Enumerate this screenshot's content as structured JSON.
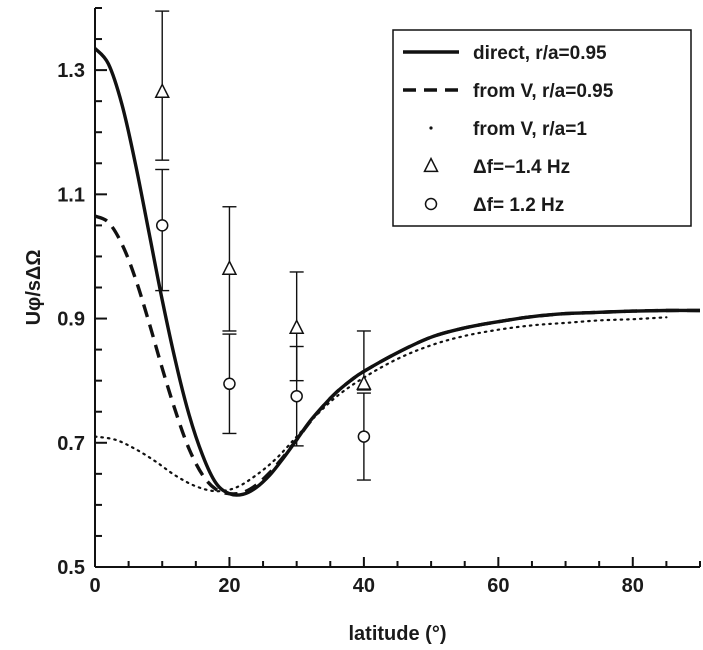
{
  "chart_data": {
    "type": "line",
    "title": "",
    "xlabel": "latitude (°)",
    "ylabel": "Uφ/sΔΩ",
    "xlim": [
      0,
      90
    ],
    "ylim": [
      0.5,
      1.4
    ],
    "x_ticks": [
      0,
      20,
      40,
      60,
      80
    ],
    "x_tick_labels": [
      "0",
      "20",
      "40",
      "60",
      "80"
    ],
    "y_ticks": [
      0.5,
      0.7,
      0.9,
      1.1,
      1.3
    ],
    "y_tick_labels": [
      "0.5",
      "0.7",
      "0.9",
      "1.1",
      "1.3"
    ],
    "grid": false,
    "legend_position": "top-right",
    "series": [
      {
        "name": "direct, r/a=0.95",
        "style": "solid",
        "color": "#111111",
        "x": [
          0,
          2,
          4,
          6,
          8,
          10,
          12,
          14,
          16,
          18,
          20,
          22,
          24,
          26,
          28,
          30,
          32,
          34,
          36,
          38,
          40,
          45,
          50,
          55,
          60,
          65,
          70,
          75,
          80,
          85,
          90
        ],
        "y": [
          1.335,
          1.31,
          1.245,
          1.15,
          1.04,
          0.93,
          0.83,
          0.745,
          0.68,
          0.635,
          0.618,
          0.617,
          0.628,
          0.648,
          0.675,
          0.705,
          0.735,
          0.76,
          0.782,
          0.8,
          0.815,
          0.845,
          0.87,
          0.885,
          0.895,
          0.903,
          0.908,
          0.91,
          0.912,
          0.913,
          0.913
        ]
      },
      {
        "name": "from V, r/a=0.95",
        "style": "dashed",
        "color": "#111111",
        "x": [
          0,
          2,
          4,
          6,
          8,
          10,
          12,
          14,
          16,
          18,
          20,
          22,
          24,
          26,
          28,
          30,
          32,
          34,
          36,
          38,
          40,
          45,
          50,
          55,
          60,
          65,
          70,
          75,
          80,
          85,
          90
        ],
        "y": [
          1.065,
          1.055,
          1.02,
          0.965,
          0.895,
          0.82,
          0.75,
          0.69,
          0.648,
          0.625,
          0.618,
          0.62,
          0.632,
          0.652,
          0.677,
          0.705,
          0.734,
          0.76,
          0.782,
          0.8,
          0.815,
          0.845,
          0.87,
          0.885,
          0.895,
          0.903,
          0.908,
          0.91,
          0.912,
          0.913,
          0.913
        ]
      },
      {
        "name": "from V, r/a=1",
        "style": "dotted",
        "color": "#111111",
        "x": [
          0,
          3,
          6,
          9,
          12,
          15,
          18,
          21,
          24,
          27,
          30,
          33,
          36,
          40,
          45,
          50,
          55,
          60,
          65,
          70,
          75,
          80,
          85
        ],
        "y": [
          0.71,
          0.705,
          0.69,
          0.67,
          0.647,
          0.63,
          0.622,
          0.628,
          0.648,
          0.675,
          0.71,
          0.745,
          0.775,
          0.805,
          0.835,
          0.857,
          0.872,
          0.882,
          0.889,
          0.893,
          0.897,
          0.899,
          0.902
        ]
      }
    ],
    "points": [
      {
        "name": "Δf=−1.4 Hz",
        "marker": "triangle",
        "x": [
          10,
          20,
          30,
          40
        ],
        "y": [
          1.265,
          0.98,
          0.885,
          0.795
        ],
        "err_low": [
          1.155,
          0.88,
          0.8,
          0.785
        ],
        "err_high": [
          1.395,
          1.08,
          0.975,
          0.88
        ]
      },
      {
        "name": "Δf=  1.2 Hz",
        "marker": "circle",
        "x": [
          10,
          20,
          30,
          40
        ],
        "y": [
          1.05,
          0.795,
          0.775,
          0.71
        ],
        "err_low": [
          0.945,
          0.715,
          0.695,
          0.64
        ],
        "err_high": [
          1.14,
          0.875,
          0.855,
          0.78
        ]
      }
    ]
  }
}
